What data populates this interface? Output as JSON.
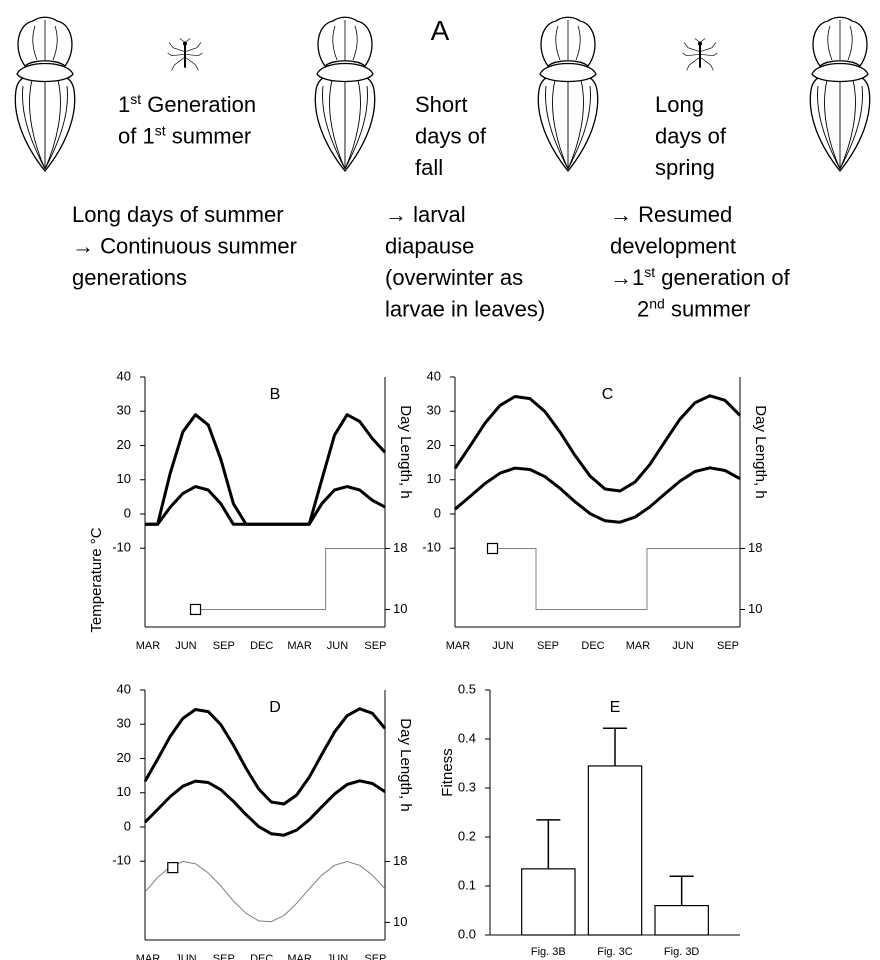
{
  "panel_a": {
    "title": "A",
    "captions": [
      {
        "lines": [
          [
            {
              "text": "1"
            },
            {
              "sup": "st"
            },
            {
              "text": " Generation"
            }
          ],
          [
            {
              "text": "of 1"
            },
            {
              "sup": "st"
            },
            {
              "text": " summer"
            }
          ]
        ]
      },
      {
        "lines": [
          "Short",
          "days of",
          "fall"
        ]
      },
      {
        "lines": [
          "Long",
          "days of",
          "spring"
        ]
      },
      {
        "lines": [
          "Long days of summer",
          "→ Continuous summer",
          "generations"
        ]
      },
      {
        "lines": [
          "→ larval",
          "diapause",
          "(overwinter as",
          "larvae in leaves)"
        ]
      },
      {
        "lines": [
          "→ Resumed",
          "development",
          [
            {
              "text": "→1"
            },
            {
              "sup": "st"
            },
            {
              "text": " generation of"
            }
          ],
          [
            {
              "text": "2"
            },
            {
              "sup": "nd"
            },
            {
              "text": " summer"
            }
          ]
        ]
      }
    ]
  },
  "shared_ylabel": "Temperature °C",
  "chart_data": [
    {
      "type": "line",
      "title": "B",
      "y2label": "Day Length, h",
      "xlim": [
        0,
        19
      ],
      "xticks": [
        {
          "value": 0,
          "label": "MAR"
        },
        {
          "value": 3,
          "label": "JUN"
        },
        {
          "value": 6,
          "label": "SEP"
        },
        {
          "value": 9,
          "label": "DEC"
        },
        {
          "value": 12,
          "label": "MAR"
        },
        {
          "value": 15,
          "label": "JUN"
        },
        {
          "value": 18,
          "label": "SEP"
        }
      ],
      "ylim": [
        -33,
        40
      ],
      "yticks": [
        -10,
        0,
        10,
        20,
        30,
        40
      ],
      "y2lim": [
        7.7,
        40.5
      ],
      "y2ticks": [
        10,
        18
      ],
      "series": [
        {
          "color": "#000000",
          "x": [
            0,
            1,
            2,
            3,
            4,
            5,
            6,
            7,
            8,
            9,
            10,
            11,
            12,
            13,
            14,
            15,
            16,
            17,
            18,
            19
          ],
          "values": [
            -3,
            -3,
            12,
            24,
            29,
            26,
            16,
            3,
            -3,
            -3,
            -3,
            -3,
            -3,
            -3,
            10,
            23,
            29,
            27,
            22,
            18
          ]
        },
        {
          "color": "#000000",
          "x": [
            0,
            1,
            2,
            3,
            4,
            5,
            6,
            7,
            8,
            9,
            10,
            11,
            12,
            13,
            14,
            15,
            16,
            17,
            18,
            19
          ],
          "values": [
            -3,
            -3,
            2,
            6,
            8,
            7,
            3,
            -3,
            -3,
            -3,
            -3,
            -3,
            -3,
            -3,
            3,
            7,
            8,
            7,
            4,
            2
          ]
        },
        {
          "color": "#808080",
          "axis": "y2",
          "x": [
            4,
            14.3,
            14.3,
            19
          ],
          "values": [
            10,
            10,
            18,
            18
          ]
        }
      ],
      "start_marker": {
        "x": 4,
        "y": 10
      }
    },
    {
      "type": "line",
      "title": "C",
      "y2label": "Day Length, h",
      "xlim": [
        0,
        19
      ],
      "xticks": [
        {
          "value": 0,
          "label": "MAR"
        },
        {
          "value": 3,
          "label": "JUN"
        },
        {
          "value": 6,
          "label": "SEP"
        },
        {
          "value": 9,
          "label": "DEC"
        },
        {
          "value": 12,
          "label": "MAR"
        },
        {
          "value": 15,
          "label": "JUN"
        },
        {
          "value": 18,
          "label": "SEP"
        }
      ],
      "ylim": [
        -33,
        40
      ],
      "yticks": [
        -10,
        0,
        10,
        20,
        30,
        40
      ],
      "y2lim": [
        7.7,
        40.5
      ],
      "y2ticks": [
        10,
        18
      ],
      "series": [
        {
          "color": "#000000",
          "x": [
            0,
            1,
            2,
            3,
            4,
            5,
            6,
            7,
            8,
            9,
            10,
            11,
            12,
            13,
            14,
            15,
            16,
            17,
            18,
            19
          ],
          "values": [
            13.3,
            19.8,
            26.5,
            31.7,
            34.3,
            33.7,
            29.9,
            23.9,
            17.1,
            11.1,
            7.3,
            6.7,
            9.3,
            14.5,
            21.2,
            27.7,
            32.5,
            34.5,
            33.2,
            28.8
          ]
        },
        {
          "color": "#000000",
          "x": [
            0,
            1,
            2,
            3,
            4,
            5,
            6,
            7,
            8,
            9,
            10,
            11,
            12,
            13,
            14,
            15,
            16,
            17,
            18,
            19
          ],
          "values": [
            1.4,
            5.1,
            8.9,
            11.9,
            13.4,
            13.0,
            10.9,
            7.5,
            3.6,
            0.1,
            -2.0,
            -2.4,
            -0.9,
            2.1,
            5.9,
            9.6,
            12.4,
            13.5,
            12.7,
            10.3
          ]
        },
        {
          "color": "#808080",
          "axis": "y2",
          "x": [
            2.5,
            5.4,
            5.4,
            12.8,
            12.8,
            19
          ],
          "values": [
            18,
            18,
            10,
            10,
            18,
            18
          ]
        }
      ],
      "start_marker": {
        "x": 2.5,
        "y": 18
      }
    },
    {
      "type": "line",
      "title": "D",
      "y2label": "Day Length, h",
      "xlim": [
        0,
        19
      ],
      "xticks": [
        {
          "value": 0,
          "label": "MAR"
        },
        {
          "value": 3,
          "label": "JUN"
        },
        {
          "value": 6,
          "label": "SEP"
        },
        {
          "value": 9,
          "label": "DEC"
        },
        {
          "value": 12,
          "label": "MAR"
        },
        {
          "value": 15,
          "label": "JUN"
        },
        {
          "value": 18,
          "label": "SEP"
        }
      ],
      "ylim": [
        -33,
        40
      ],
      "yticks": [
        -10,
        0,
        10,
        20,
        30,
        40
      ],
      "y2lim": [
        7.7,
        40.5
      ],
      "y2ticks": [
        10,
        18
      ],
      "series": [
        {
          "color": "#000000",
          "x": [
            0,
            1,
            2,
            3,
            4,
            5,
            6,
            7,
            8,
            9,
            10,
            11,
            12,
            13,
            14,
            15,
            16,
            17,
            18,
            19
          ],
          "values": [
            13.3,
            19.8,
            26.5,
            31.7,
            34.3,
            33.7,
            29.9,
            23.9,
            17.1,
            11.1,
            7.3,
            6.7,
            9.3,
            14.5,
            21.2,
            27.7,
            32.5,
            34.5,
            33.2,
            28.8
          ]
        },
        {
          "color": "#000000",
          "x": [
            0,
            1,
            2,
            3,
            4,
            5,
            6,
            7,
            8,
            9,
            10,
            11,
            12,
            13,
            14,
            15,
            16,
            17,
            18,
            19
          ],
          "values": [
            1.4,
            5.1,
            8.9,
            11.9,
            13.4,
            13.0,
            10.9,
            7.5,
            3.6,
            0.1,
            -2.0,
            -2.4,
            -0.9,
            2.1,
            5.9,
            9.6,
            12.4,
            13.5,
            12.7,
            10.3
          ]
        },
        {
          "color": "#808080",
          "axis": "y2",
          "x": [
            0,
            1,
            2,
            3,
            4,
            5,
            6,
            7,
            8,
            9,
            10,
            11,
            12,
            13,
            14,
            15,
            16,
            17,
            18,
            19
          ],
          "values": [
            14.0,
            15.9,
            17.3,
            18.0,
            17.7,
            16.5,
            14.8,
            12.8,
            11.2,
            10.2,
            10.1,
            10.9,
            12.5,
            14.4,
            16.2,
            17.5,
            18.0,
            17.5,
            16.2,
            14.4
          ]
        }
      ],
      "start_marker": {
        "x": 2.2,
        "y": 17.2
      }
    },
    {
      "type": "bar",
      "title": "E",
      "ylabel": "Fitness",
      "categories": [
        "Fig. 3B",
        "Fig. 3C",
        "Fig. 3D"
      ],
      "values": [
        0.135,
        0.345,
        0.06
      ],
      "errors": [
        0.1,
        0.077,
        0.06
      ],
      "color": "#ffffff",
      "ylim": [
        0,
        0.5
      ],
      "yticks": [
        {
          "value": 0,
          "label": "0.0"
        },
        0.1,
        0.2,
        0.3,
        0.4,
        0.5
      ]
    }
  ]
}
